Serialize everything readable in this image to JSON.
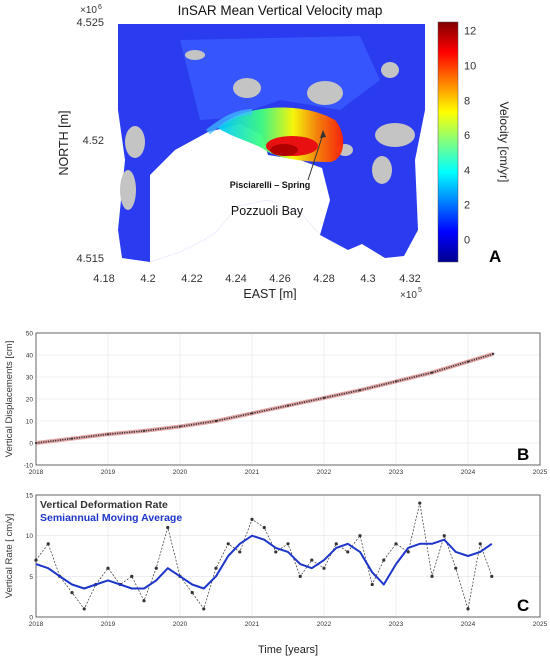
{
  "panel_a": {
    "title": "InSAR Mean Vertical Velocity map",
    "letter": "A",
    "xlabel": "EAST [m]",
    "ylabel": "NORTH [m]",
    "x_ticks": [
      "4.18",
      "4.2",
      "4.22",
      "4.24",
      "4.26",
      "4.28",
      "4.3",
      "4.32"
    ],
    "x_exp_base": "×10",
    "x_exp": "5",
    "y_ticks": [
      "4.525",
      "4.52",
      "4.515"
    ],
    "y_exp_base": "×10",
    "y_exp": "6",
    "colorbar_label": "Velocity [cm/yr]",
    "colorbar_ticks": [
      "12",
      "10",
      "8",
      "6",
      "4",
      "2",
      "0"
    ],
    "colormap": [
      "#00008f",
      "#0000ff",
      "#0080ff",
      "#00ffff",
      "#80ff80",
      "#ffff00",
      "#ff8000",
      "#ff0000",
      "#800000"
    ],
    "annotation_spring": "Pisciarelli – Spring",
    "annotation_bay": "Pozzuoli Bay"
  },
  "chart_data": [
    {
      "type": "line",
      "panel": "B",
      "ylabel": "Vertical Displacements [cm]",
      "xlim": [
        2018,
        2025
      ],
      "ylim": [
        -10,
        50
      ],
      "x_ticks": [
        "2018",
        "2019",
        "2020",
        "2021",
        "2022",
        "2023",
        "2024",
        "2025"
      ],
      "y_ticks": [
        "-10",
        "0",
        "10",
        "20",
        "30",
        "40",
        "50"
      ],
      "marker_color": "#333333",
      "fit_color": "#e3a6a6",
      "series": [
        {
          "x": [
            2018.0,
            2018.5,
            2019.0,
            2019.5,
            2020.0,
            2020.5,
            2021.0,
            2021.5,
            2022.0,
            2022.5,
            2023.0,
            2023.5,
            2024.0,
            2024.35
          ],
          "values": [
            0,
            2,
            4,
            5.5,
            7.5,
            10,
            13.5,
            17,
            20.5,
            24,
            28,
            32,
            37,
            40.5
          ]
        }
      ]
    },
    {
      "type": "line",
      "panel": "C",
      "xlabel": "Time [years]",
      "ylabel": "Vertical Rate [ cm/y]",
      "xlim": [
        2018,
        2025
      ],
      "ylim": [
        0,
        15
      ],
      "x_ticks": [
        "2018",
        "2019",
        "2020",
        "2021",
        "2022",
        "2023",
        "2024",
        "2025"
      ],
      "y_ticks": [
        "0",
        "5",
        "10",
        "15"
      ],
      "series": [
        {
          "name": "Vertical Deformation Rate",
          "color": "#333333",
          "x": [
            2018.0,
            2018.17,
            2018.33,
            2018.5,
            2018.67,
            2018.83,
            2019.0,
            2019.17,
            2019.33,
            2019.5,
            2019.67,
            2019.83,
            2020.0,
            2020.17,
            2020.33,
            2020.5,
            2020.67,
            2020.83,
            2021.0,
            2021.17,
            2021.33,
            2021.5,
            2021.67,
            2021.83,
            2022.0,
            2022.17,
            2022.33,
            2022.5,
            2022.67,
            2022.83,
            2023.0,
            2023.17,
            2023.33,
            2023.5,
            2023.67,
            2023.83,
            2024.0,
            2024.17,
            2024.33
          ],
          "values": [
            7,
            9,
            5,
            3,
            1,
            4,
            6,
            4,
            5,
            2,
            6,
            11,
            5,
            3,
            1,
            6,
            9,
            8,
            12,
            11,
            8,
            9,
            5,
            7,
            6,
            9,
            8,
            10,
            4,
            7,
            9,
            8,
            14,
            5,
            10,
            6,
            1,
            9,
            5
          ]
        },
        {
          "name": "Semiannual Moving Average",
          "color": "#1d35c9",
          "x": [
            2018.0,
            2018.17,
            2018.33,
            2018.5,
            2018.67,
            2018.83,
            2019.0,
            2019.17,
            2019.33,
            2019.5,
            2019.67,
            2019.83,
            2020.0,
            2020.17,
            2020.33,
            2020.5,
            2020.67,
            2020.83,
            2021.0,
            2021.17,
            2021.33,
            2021.5,
            2021.67,
            2021.83,
            2022.0,
            2022.17,
            2022.33,
            2022.5,
            2022.67,
            2022.83,
            2023.0,
            2023.17,
            2023.33,
            2023.5,
            2023.67,
            2023.83,
            2024.0,
            2024.17,
            2024.33
          ],
          "values": [
            6.5,
            6,
            5,
            4,
            3.5,
            4,
            4.5,
            4,
            3.5,
            3.5,
            4.5,
            6,
            5,
            4,
            3.5,
            5,
            7.5,
            9,
            10,
            9.5,
            8.5,
            8,
            6.5,
            6,
            7,
            8.5,
            9,
            8,
            5.5,
            4,
            6.5,
            8.5,
            9,
            9,
            9.5,
            8,
            7.5,
            8,
            9
          ]
        }
      ]
    }
  ]
}
